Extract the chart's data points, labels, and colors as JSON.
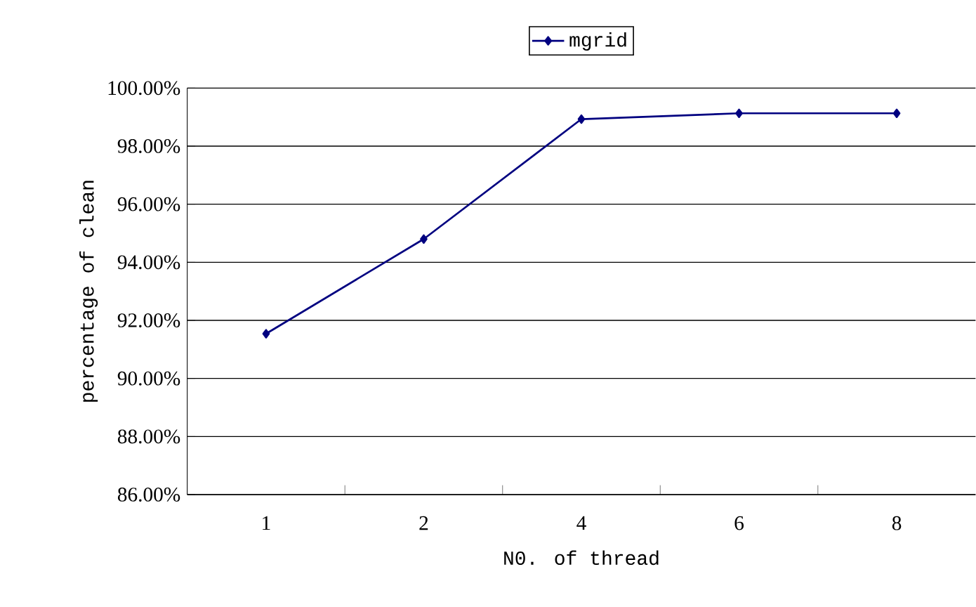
{
  "chart_data": {
    "type": "line",
    "xlabel": "N0. of thread",
    "ylabel": "percentage of clean",
    "categories": [
      "1",
      "2",
      "4",
      "6",
      "8"
    ],
    "series": [
      {
        "name": "mgrid",
        "color": "#000080",
        "values": [
          91.54,
          94.8,
          98.93,
          99.13,
          99.13
        ]
      }
    ],
    "ylim": [
      86,
      100
    ],
    "yticks": [
      {
        "value": 86,
        "label": "86.00%"
      },
      {
        "value": 88,
        "label": "88.00%"
      },
      {
        "value": 90,
        "label": "90.00%"
      },
      {
        "value": 92,
        "label": "92.00%"
      },
      {
        "value": 94,
        "label": "94.00%"
      },
      {
        "value": 96,
        "label": "96.00%"
      },
      {
        "value": 98,
        "label": "98.00%"
      },
      {
        "value": 100,
        "label": "100.00%"
      }
    ],
    "grid": "y",
    "legend": "top",
    "marker": "diamond",
    "line_style": "solid"
  }
}
